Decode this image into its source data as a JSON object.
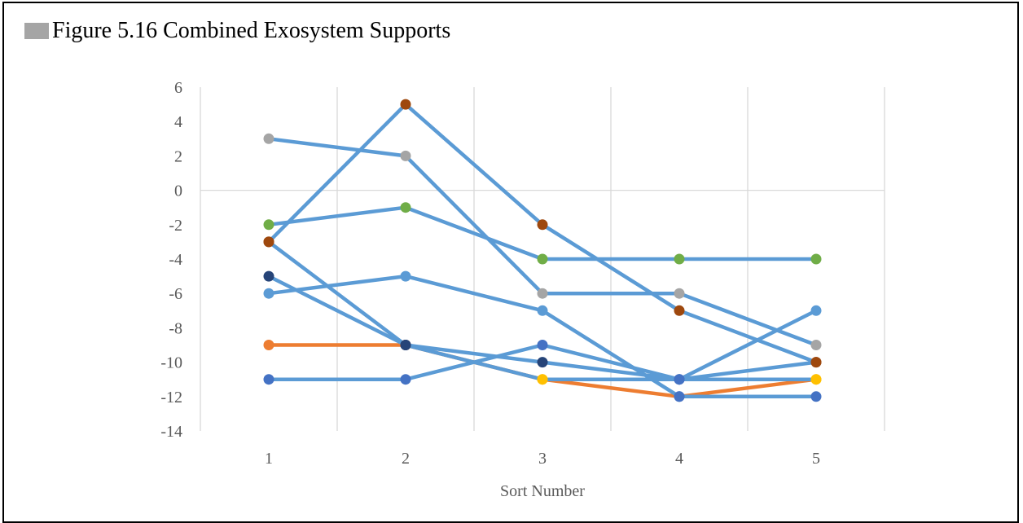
{
  "caption": {
    "title": "Figure 5.16 Combined Exosystem Supports",
    "marker_color": "#a5a5a5"
  },
  "chart_data": {
    "type": "line",
    "title": "Figure 5.16 Combined Exosystem Supports",
    "xlabel": "Sort Number",
    "ylabel": "",
    "x": [
      1,
      2,
      3,
      4,
      5
    ],
    "ylim": [
      -14,
      6
    ],
    "yticks": [
      6,
      4,
      2,
      0,
      -2,
      -4,
      -6,
      -8,
      -10,
      -12,
      -14
    ],
    "xticks": [
      "1",
      "2",
      "3",
      "4",
      "5"
    ],
    "grid": true,
    "legend": "none",
    "series": [
      {
        "line_color": "#ed7d31",
        "marker_colors": [
          "#ed7d31",
          "#ed7d31",
          "#ffc000",
          "#4472c4",
          "#ffc000"
        ],
        "values": [
          -9,
          -9,
          -11,
          -12,
          -11
        ]
      },
      {
        "line_color": "#5b9bd5",
        "marker_colors": [
          "#a5a5a5",
          "#a5a5a5",
          "#a5a5a5",
          "#a5a5a5",
          "#a5a5a5"
        ],
        "values": [
          3,
          2,
          -6,
          -6,
          -9
        ]
      },
      {
        "line_color": "#5b9bd5",
        "marker_colors": [
          "#9e480e",
          "#9e480e",
          "#9e480e",
          "#9e480e",
          "#9e480e"
        ],
        "values": [
          -3,
          5,
          -2,
          -7,
          -10
        ]
      },
      {
        "line_color": "#5b9bd5",
        "marker_colors": [
          "#70ad47",
          "#70ad47",
          "#70ad47",
          "#70ad47",
          "#70ad47"
        ],
        "values": [
          -2,
          -1,
          -4,
          -4,
          -4
        ]
      },
      {
        "line_color": "#5b9bd5",
        "marker_colors": [
          "#5b9bd5",
          "#5b9bd5",
          "#5b9bd5",
          "#4472c4",
          "#4472c4"
        ],
        "values": [
          -6,
          -5,
          -7,
          -12,
          -12
        ]
      },
      {
        "line_color": "#5b9bd5",
        "marker_colors": [
          "#264478",
          "#264478",
          "#264478",
          "#4472c4",
          "#ffc000"
        ],
        "values": [
          -5,
          -9,
          -10,
          -11,
          -11
        ]
      },
      {
        "line_color": "#5b9bd5",
        "marker_colors": [
          "#4472c4",
          "#4472c4",
          "#4472c4",
          "#4472c4",
          "#5b9bd5"
        ],
        "values": [
          -11,
          -11,
          -9,
          -11,
          -7
        ]
      },
      {
        "line_color": "#5b9bd5",
        "marker_colors": [
          "#9e480e",
          "#264478",
          "#ffc000",
          "#4472c4",
          "#9e480e"
        ],
        "values": [
          -3,
          -9,
          -11,
          -11,
          -10
        ]
      }
    ],
    "colors": {
      "gridline": "#d9d9d9",
      "axis": "#d9d9d9",
      "tick_text": "#595959"
    }
  }
}
